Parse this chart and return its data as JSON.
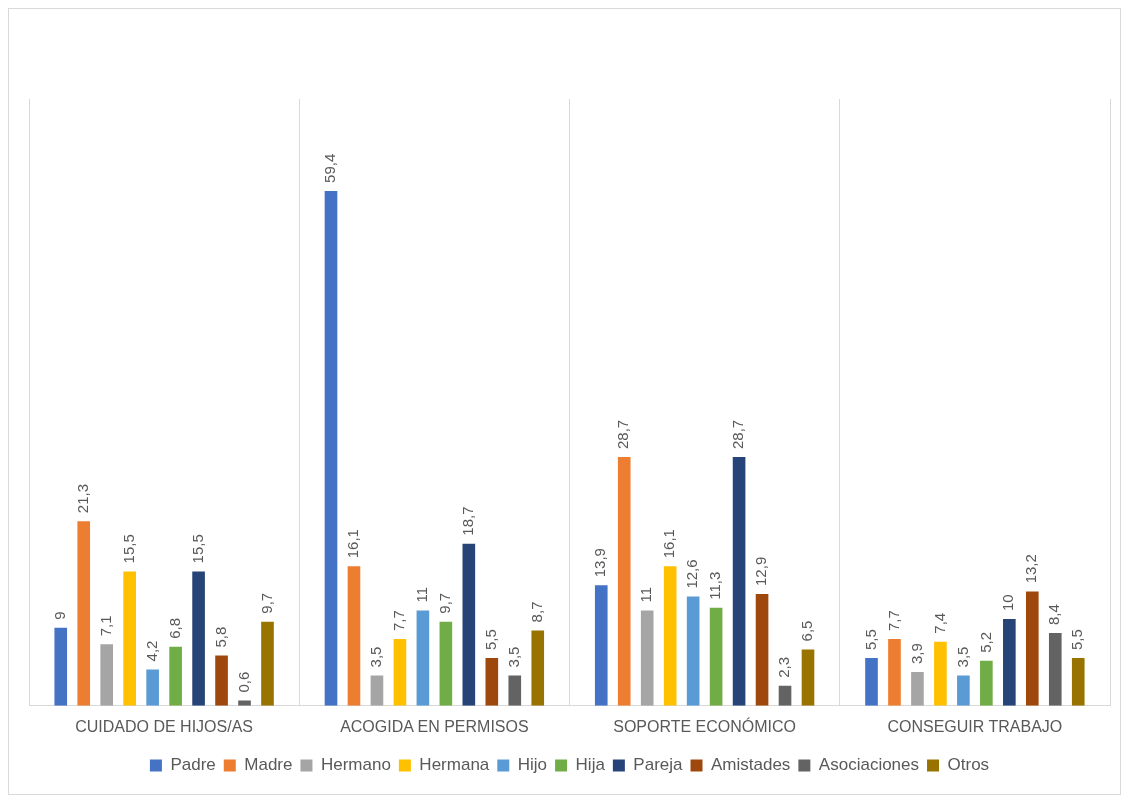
{
  "chart_data": {
    "type": "bar",
    "categories": [
      "CUIDADO DE HIJOS/AS",
      "ACOGIDA EN PERMISOS",
      "SOPORTE ECONÓMICO",
      "CONSEGUIR TRABAJO"
    ],
    "series": [
      {
        "name": "Padre",
        "color": "#4472c4",
        "values": [
          9,
          59.4,
          13.9,
          5.5
        ],
        "value_labels": [
          "9",
          "59,4",
          "13,9",
          "5,5"
        ]
      },
      {
        "name": "Madre",
        "color": "#ed7d31",
        "values": [
          21.3,
          16.1,
          28.7,
          7.7
        ],
        "value_labels": [
          "21,3",
          "16,1",
          "28,7",
          "7,7"
        ]
      },
      {
        "name": "Hermano",
        "color": "#a5a5a5",
        "values": [
          7.1,
          3.5,
          11,
          3.9
        ],
        "value_labels": [
          "7,1",
          "3,5",
          "11",
          "3,9"
        ]
      },
      {
        "name": "Hermana",
        "color": "#ffc000",
        "values": [
          15.5,
          7.7,
          16.1,
          7.4
        ],
        "value_labels": [
          "15,5",
          "7,7",
          "16,1",
          "7,4"
        ]
      },
      {
        "name": "Hijo",
        "color": "#5b9bd5",
        "values": [
          4.2,
          11,
          12.6,
          3.5
        ],
        "value_labels": [
          "4,2",
          "11",
          "12,6",
          "3,5"
        ]
      },
      {
        "name": "Hija",
        "color": "#70ad47",
        "values": [
          6.8,
          9.7,
          11.3,
          5.2
        ],
        "value_labels": [
          "6,8",
          "9,7",
          "11,3",
          "5,2"
        ]
      },
      {
        "name": "Pareja",
        "color": "#264478",
        "values": [
          15.5,
          18.7,
          28.7,
          10
        ],
        "value_labels": [
          "15,5",
          "18,7",
          "28,7",
          "10"
        ]
      },
      {
        "name": "Amistades",
        "color": "#9e480e",
        "values": [
          5.8,
          5.5,
          12.9,
          13.2
        ],
        "value_labels": [
          "5,8",
          "5,5",
          "12,9",
          "13,2"
        ]
      },
      {
        "name": "Asociaciones",
        "color": "#636363",
        "values": [
          0.6,
          3.5,
          2.3,
          8.4
        ],
        "value_labels": [
          "0,6",
          "3,5",
          "2,3",
          "8,4"
        ]
      },
      {
        "name": "Otros",
        "color": "#997300",
        "values": [
          9.7,
          8.7,
          6.5,
          5.5
        ],
        "value_labels": [
          "9,7",
          "8,7",
          "6,5",
          "5,5"
        ]
      }
    ],
    "grid": "x",
    "legend": "bottom",
    "tick_labels": "x"
  }
}
